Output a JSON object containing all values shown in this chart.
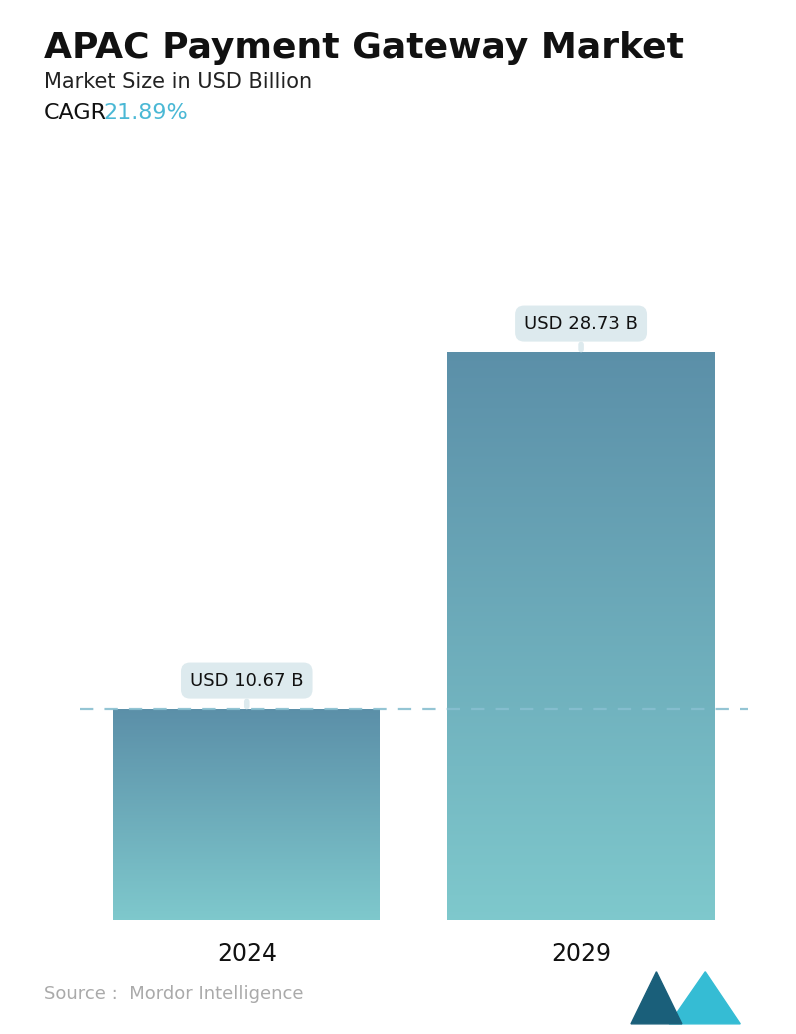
{
  "title": "APAC Payment Gateway Market",
  "subtitle": "Market Size in USD Billion",
  "cagr_label": "CAGR ",
  "cagr_value": "21.89%",
  "cagr_color": "#4ab8d5",
  "categories": [
    "2024",
    "2029"
  ],
  "values": [
    10.67,
    28.73
  ],
  "bar_labels": [
    "USD 10.67 B",
    "USD 28.73 B"
  ],
  "bar_color_top": "#5b8fa8",
  "bar_color_bottom": "#7ec8cc",
  "dashed_line_color": "#88bfd0",
  "source_text": "Source :  Mordor Intelligence",
  "source_color": "#aaaaaa",
  "background_color": "#ffffff",
  "title_fontsize": 26,
  "subtitle_fontsize": 15,
  "cagr_fontsize": 16,
  "bar_label_fontsize": 13,
  "tick_fontsize": 17,
  "source_fontsize": 13,
  "ylim_max": 34,
  "annotation_box_color": "#ddeaee",
  "annotation_text_color": "#111111",
  "logo_color_left": "#1a5f7a",
  "logo_color_right": "#35bcd4"
}
